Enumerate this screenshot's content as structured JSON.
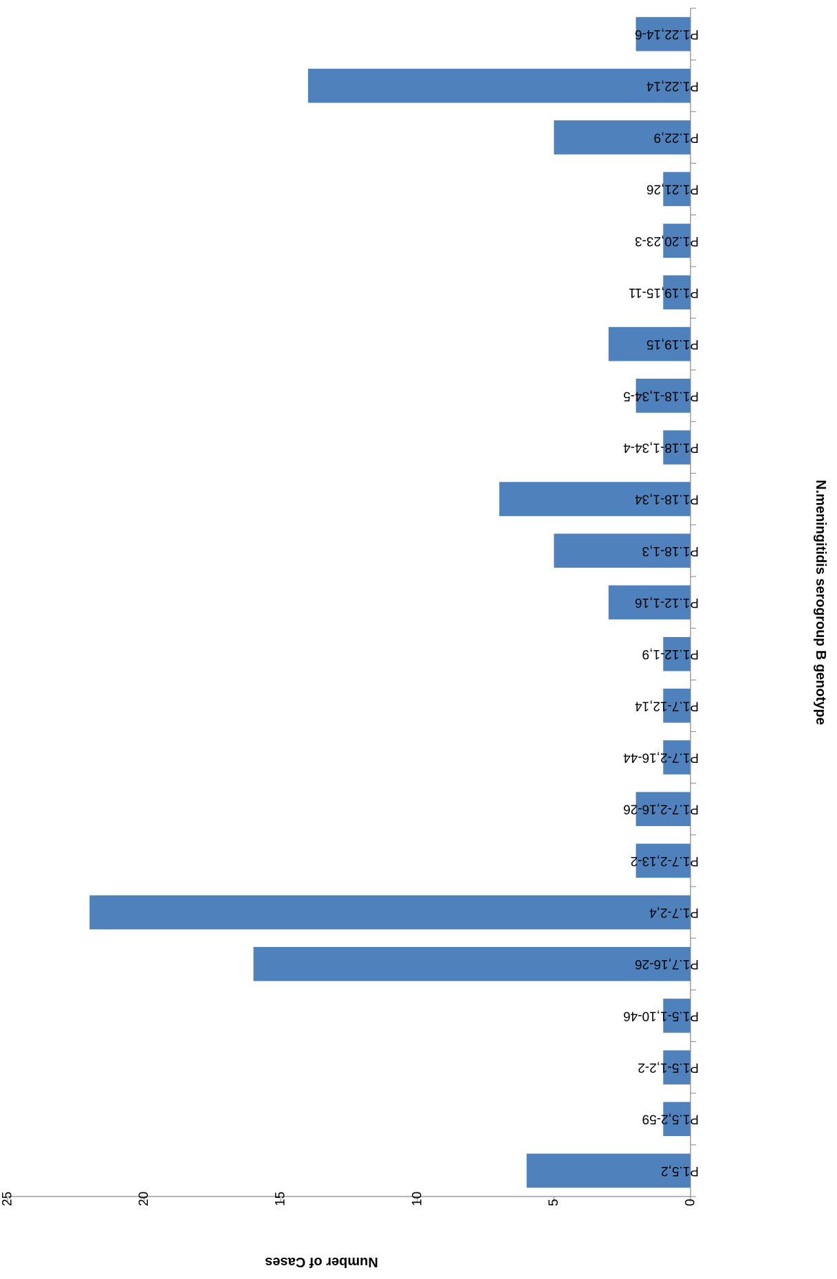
{
  "chart_data": {
    "type": "bar",
    "orientation": "horizontal",
    "rotation": "180deg",
    "xlabel": "N.meningitidis serogroup B genotype",
    "ylabel": "Number of Cases",
    "ylim": [
      0,
      25
    ],
    "y_ticks": [
      0,
      5,
      10,
      15,
      20,
      25
    ],
    "grid": false,
    "legend": "none",
    "categories": [
      "P1.5,2",
      "P1.5,2-59",
      "P1.5-1,2-2",
      "P1.5-1,10-46",
      "P1.7,16-26",
      "P1.7-2,4",
      "P1.7-2,13-2",
      "P1.7-2,16-26",
      "P1.7-2,16-44",
      "P1.7-12,14",
      "P1.12-1,9",
      "P1.12-1,16",
      "P1.18-1,3",
      "P1.18-1,34",
      "P1.18-1,34-4",
      "P1.18-1,34-5",
      "P1.19,15",
      "P1.19,15-11",
      "P1.20,23-3",
      "P1.21,26",
      "P1.22,9",
      "P1.22,14",
      "P1.22,14-6"
    ],
    "values": [
      6,
      1,
      1,
      1,
      16,
      22,
      2,
      2,
      1,
      1,
      1,
      3,
      5,
      7,
      1,
      2,
      3,
      1,
      1,
      1,
      5,
      14,
      2
    ],
    "colors": {
      "bar": "#4f81bd",
      "axis": "#868686",
      "text": "#000000"
    }
  }
}
